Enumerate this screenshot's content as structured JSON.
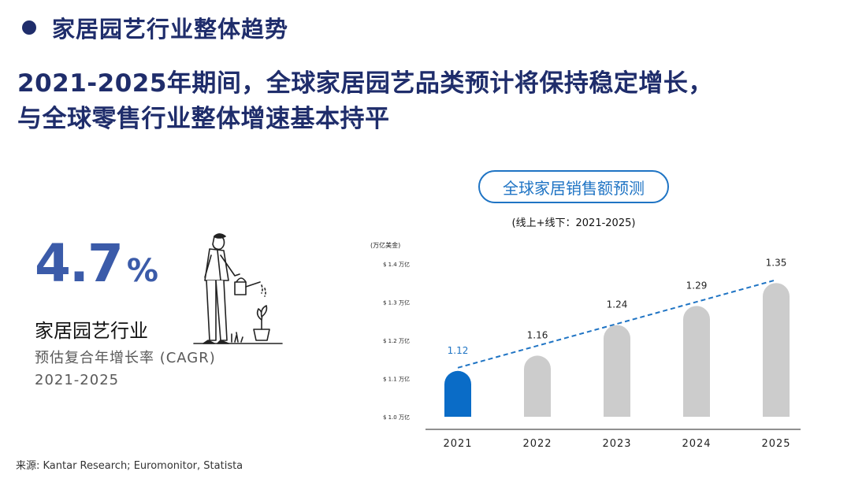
{
  "section": {
    "title": "家居园艺行业整体趋势"
  },
  "headline": {
    "line1": "2021-2025年期间，全球家居园艺品类预计将保持稳定增长，",
    "line2": "与全球零售行业整体增速基本持平"
  },
  "stat": {
    "value": "4.7",
    "unit": "%",
    "label": "家居园艺行业",
    "sublabel": "预估复合年增长率 (CAGR)",
    "years": "2021-2025"
  },
  "chart_header": {
    "pill": "全球家居销售额预测",
    "subtitle": "(线上+线下：2021-2025)"
  },
  "colors": {
    "highlight": "#0a6cc7",
    "bar": "#cccccc",
    "trend": "#1f74c4",
    "accent": "#3b5ba9",
    "title": "#1f2d6b"
  },
  "chart_data": {
    "type": "bar",
    "title": "全球家居销售额预测",
    "unit_label": "(万亿美金)",
    "categories": [
      "2021",
      "2022",
      "2023",
      "2024",
      "2025"
    ],
    "values": [
      1.12,
      1.16,
      1.24,
      1.29,
      1.35
    ],
    "data_labels": [
      "1.12",
      "1.16",
      "1.24",
      "1.29",
      "1.35"
    ],
    "yticks": [
      1.0,
      1.1,
      1.2,
      1.3,
      1.4
    ],
    "ytick_labels": [
      "$ 1.0 万亿",
      "$ 1.1 万亿",
      "$ 1.2 万亿",
      "$ 1.3 万亿",
      "$ 1.4 万亿"
    ],
    "ylim": [
      1.0,
      1.4
    ],
    "highlight_index": 0,
    "trend_line": "dashed",
    "grid": false
  },
  "source": "来源: Kantar Research; Euromonitor, Statista"
}
